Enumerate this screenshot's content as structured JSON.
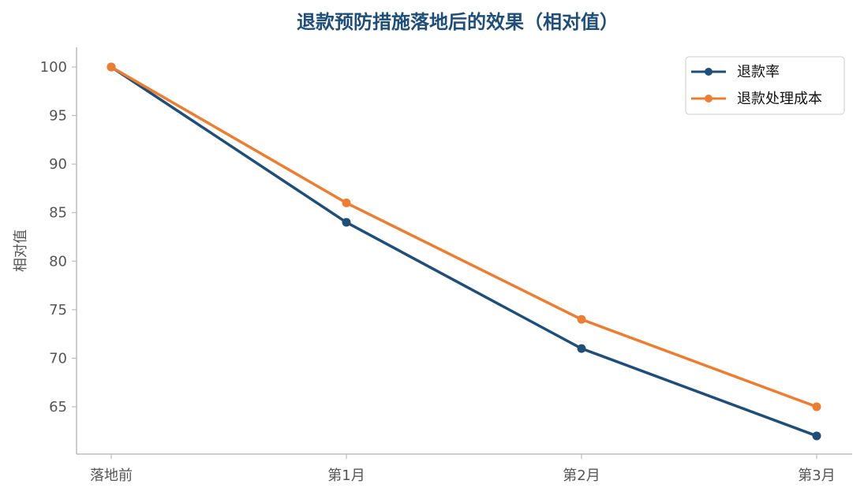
{
  "chart_data": {
    "type": "line",
    "title": "退款预防措施落地后的效果（相对值）",
    "xlabel": "",
    "ylabel": "相对值",
    "categories": [
      "落地前",
      "第1月",
      "第2月",
      "第3月"
    ],
    "yticks": [
      65,
      70,
      75,
      80,
      85,
      90,
      95,
      100
    ],
    "ylim": [
      60,
      102
    ],
    "grid": false,
    "legend_position": "top-right",
    "series": [
      {
        "name": "退款率",
        "values": [
          100,
          84,
          71,
          62
        ],
        "color": "#1f4e79",
        "marker": "circle"
      },
      {
        "name": "退款处理成本",
        "values": [
          100,
          86,
          74,
          65
        ],
        "color": "#ed7d31",
        "marker": "circle"
      }
    ],
    "colors": {
      "title": "#1f4e79",
      "axis": "#bbbbbb",
      "tick_text": "#555555"
    }
  }
}
